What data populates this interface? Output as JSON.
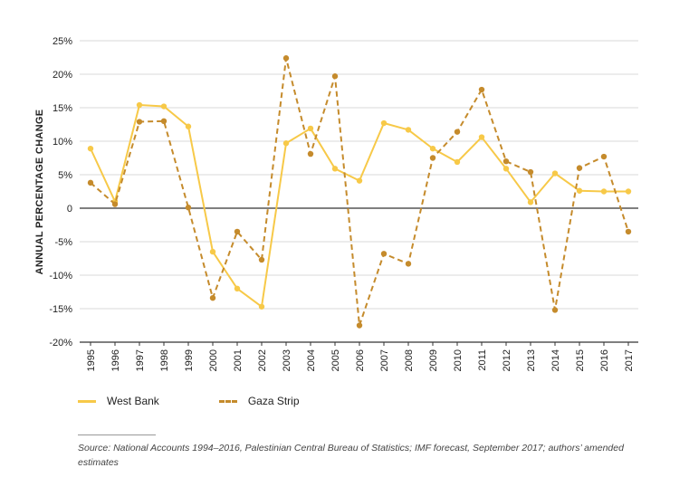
{
  "chart_data": {
    "type": "line",
    "ylabel": "ANNUAL PERCENTAGE CHANGE",
    "xlabel": "",
    "ylim": [
      -20,
      25
    ],
    "yticks": [
      25,
      20,
      15,
      10,
      5,
      0,
      -5,
      -10,
      -15,
      -20
    ],
    "ytick_labels": [
      "25%",
      "20%",
      "15%",
      "10%",
      "5%",
      "0",
      "-5%",
      "-10%",
      "-15%",
      "-20%"
    ],
    "categories": [
      "1995",
      "1996",
      "1997",
      "1998",
      "1999",
      "2000",
      "2001",
      "2002",
      "2003",
      "2004",
      "2005",
      "2006",
      "2007",
      "2008",
      "2009",
      "2010",
      "2011",
      "2012",
      "2013",
      "2014",
      "2015",
      "2016",
      "2017"
    ],
    "series": [
      {
        "name": "West Bank",
        "color": "#f7c948",
        "style": "solid",
        "values": [
          8.9,
          1.0,
          15.4,
          15.2,
          12.2,
          -6.5,
          -12.0,
          -14.7,
          9.7,
          11.9,
          5.9,
          4.1,
          12.7,
          11.7,
          8.9,
          6.9,
          10.6,
          5.9,
          0.9,
          5.2,
          2.6,
          2.5,
          2.5
        ]
      },
      {
        "name": "Gaza Strip",
        "color": "#c58b2c",
        "style": "dashed",
        "values": [
          3.8,
          0.6,
          12.9,
          13.0,
          0.1,
          -13.4,
          -3.5,
          -7.7,
          22.4,
          8.1,
          19.7,
          -17.5,
          -6.8,
          -8.3,
          7.5,
          11.4,
          17.7,
          7.0,
          5.4,
          -15.2,
          6.0,
          7.7,
          -3.5
        ]
      }
    ],
    "legend_position": "bottom-left"
  },
  "source_note": "Source: National Accounts 1994–2016, Palestinian Central Bureau of Statistics; IMF forecast, September 2017; authors’ amended estimates"
}
